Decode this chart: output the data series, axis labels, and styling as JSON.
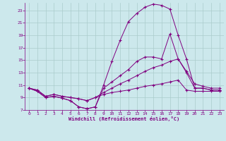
{
  "bg_color": "#cce8ec",
  "grid_color": "#aacccc",
  "line_color": "#800080",
  "marker": "+",
  "xlabel": "Windchill (Refroidissement éolien,°C)",
  "xlabel_color": "#800080",
  "tick_color": "#800080",
  "xlim": [
    -0.5,
    23.5
  ],
  "ylim": [
    7,
    24.2
  ],
  "yticks": [
    7,
    9,
    11,
    13,
    15,
    17,
    19,
    21,
    23
  ],
  "xticks": [
    0,
    1,
    2,
    3,
    4,
    5,
    6,
    7,
    8,
    9,
    10,
    11,
    12,
    13,
    14,
    15,
    16,
    17,
    18,
    19,
    20,
    21,
    22,
    23
  ],
  "series": [
    {
      "x": [
        0,
        1,
        2,
        3,
        4,
        5,
        6,
        7,
        8,
        9,
        10,
        11,
        12,
        13,
        14,
        15,
        16,
        17,
        18,
        19,
        20,
        21,
        22,
        23
      ],
      "y": [
        10.5,
        10.0,
        9.0,
        9.2,
        8.9,
        8.5,
        7.5,
        7.2,
        7.5,
        11.0,
        14.8,
        18.2,
        21.2,
        22.5,
        23.5,
        24.0,
        23.8,
        23.2,
        19.0,
        15.2,
        10.5,
        10.5,
        10.2,
        10.2
      ]
    },
    {
      "x": [
        0,
        1,
        2,
        3,
        4,
        5,
        6,
        7,
        8,
        9,
        10,
        11,
        12,
        13,
        14,
        15,
        16,
        17,
        18,
        19,
        20,
        21,
        22,
        23
      ],
      "y": [
        10.5,
        10.0,
        9.0,
        9.2,
        8.9,
        8.5,
        7.5,
        7.2,
        7.5,
        10.5,
        11.5,
        12.5,
        13.5,
        14.8,
        15.5,
        15.5,
        15.2,
        19.2,
        15.2,
        13.0,
        10.5,
        10.5,
        10.2,
        10.2
      ]
    },
    {
      "x": [
        0,
        1,
        2,
        3,
        4,
        5,
        6,
        7,
        8,
        9,
        10,
        11,
        12,
        13,
        14,
        15,
        16,
        17,
        18,
        19,
        20,
        21,
        22,
        23
      ],
      "y": [
        10.5,
        10.2,
        9.2,
        9.5,
        9.2,
        9.0,
        8.8,
        8.5,
        9.0,
        9.8,
        10.5,
        11.2,
        11.8,
        12.5,
        13.2,
        13.8,
        14.2,
        14.8,
        15.2,
        13.2,
        11.2,
        10.8,
        10.5,
        10.5
      ]
    },
    {
      "x": [
        0,
        1,
        2,
        3,
        4,
        5,
        6,
        7,
        8,
        9,
        10,
        11,
        12,
        13,
        14,
        15,
        16,
        17,
        18,
        19,
        20,
        21,
        22,
        23
      ],
      "y": [
        10.5,
        10.2,
        9.2,
        9.5,
        9.2,
        9.0,
        8.8,
        8.5,
        9.0,
        9.5,
        9.8,
        10.0,
        10.2,
        10.5,
        10.8,
        11.0,
        11.2,
        11.5,
        11.8,
        10.2,
        10.0,
        10.0,
        10.0,
        10.0
      ]
    }
  ]
}
